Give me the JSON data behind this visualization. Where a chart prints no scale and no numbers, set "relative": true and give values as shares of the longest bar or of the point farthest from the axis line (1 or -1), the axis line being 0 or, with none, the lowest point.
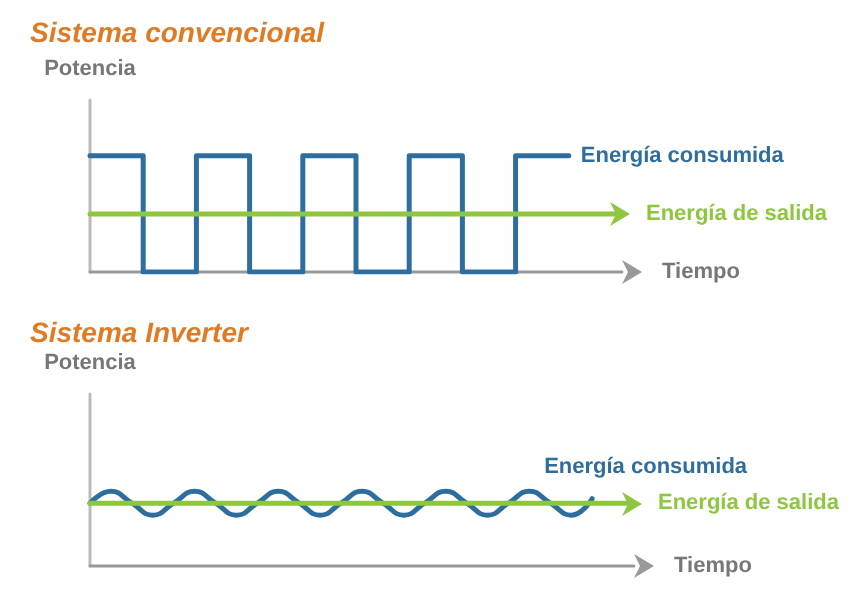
{
  "chart_data": [
    {
      "type": "line",
      "title": "Sistema convencional",
      "ylabel": "Potencia",
      "xlabel": "Tiempo",
      "relative": true,
      "legend": "right",
      "grid": false,
      "categories": [
        null,
        null,
        null,
        null,
        null,
        null,
        null,
        null,
        null,
        null,
        null
      ],
      "series": [
        {
          "name": "Energía consumida",
          "type": "step",
          "color": "#2e6e9e",
          "values": [
            1,
            1,
            0,
            1,
            0,
            1,
            0,
            1,
            0,
            1,
            null
          ]
        },
        {
          "name": "Energía de salida",
          "type": "line",
          "color": "#8dc63f",
          "values": [
            0.5,
            0.5,
            0.5,
            0.5,
            0.5,
            0.5,
            0.5,
            0.5,
            0.5,
            0.5,
            0.5
          ]
        }
      ]
    },
    {
      "type": "line",
      "title": "Sistema Inverter",
      "ylabel": "Potencia",
      "xlabel": "Tiempo",
      "relative": true,
      "legend": "right",
      "grid": false,
      "categories": [
        null,
        null,
        null,
        null,
        null,
        null,
        null,
        null,
        null,
        null,
        null,
        null,
        null,
        null,
        null,
        null,
        null,
        null,
        null,
        null,
        null,
        null,
        null,
        null,
        null,
        null,
        null
      ],
      "series": [
        {
          "name": "Energía consumida",
          "type": "line",
          "color": "#2e6e9e",
          "values": [
            0.84,
            1,
            0.84,
            0.68,
            0.84,
            1,
            0.84,
            0.68,
            0.84,
            1,
            0.84,
            0.68,
            0.84,
            1,
            0.84,
            0.68,
            0.84,
            1,
            0.84,
            0.68,
            0.84,
            1,
            0.84,
            0.68,
            0.9,
            null,
            null
          ]
        },
        {
          "name": "Energía de salida",
          "type": "line",
          "color": "#8dc63f",
          "values": [
            0.84,
            0.84,
            0.84,
            0.84,
            0.84,
            0.84,
            0.84,
            0.84,
            0.84,
            0.84,
            0.84,
            0.84,
            0.84,
            0.84,
            0.84,
            0.84,
            0.84,
            0.84,
            0.84,
            0.84,
            0.84,
            0.84,
            0.84,
            0.84,
            0.84,
            0.84,
            0.84
          ]
        }
      ]
    }
  ]
}
